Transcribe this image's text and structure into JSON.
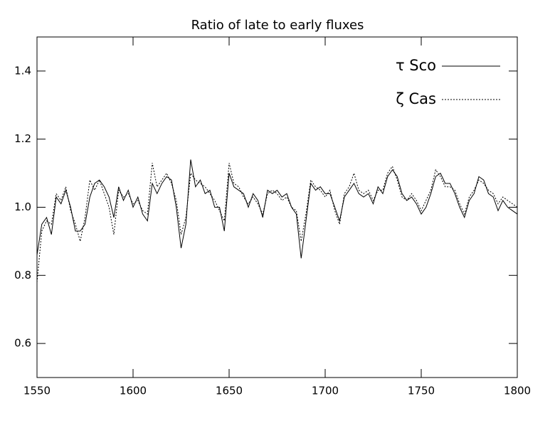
{
  "chart_data": {
    "type": "line",
    "title": "Ratio of late to early fluxes",
    "x": [
      1550,
      1552.5,
      1555,
      1557.5,
      1560,
      1562.5,
      1565,
      1567.5,
      1570,
      1572.5,
      1575,
      1577.5,
      1580,
      1582.5,
      1585,
      1587.5,
      1590,
      1592.5,
      1595,
      1597.5,
      1600,
      1602.5,
      1605,
      1607.5,
      1610,
      1612.5,
      1615,
      1617.5,
      1620,
      1622.5,
      1625,
      1627.5,
      1630,
      1632.5,
      1635,
      1637.5,
      1640,
      1642.5,
      1645,
      1647.5,
      1650,
      1652.5,
      1655,
      1657.5,
      1660,
      1662.5,
      1665,
      1667.5,
      1670,
      1672.5,
      1675,
      1677.5,
      1680,
      1682.5,
      1685,
      1687.5,
      1690,
      1692.5,
      1695,
      1697.5,
      1700,
      1702.5,
      1705,
      1707.5,
      1710,
      1712.5,
      1715,
      1717.5,
      1720,
      1722.5,
      1725,
      1727.5,
      1730,
      1732.5,
      1735,
      1737.5,
      1740,
      1742.5,
      1745,
      1747.5,
      1750,
      1752.5,
      1755,
      1757.5,
      1760,
      1762.5,
      1765,
      1767.5,
      1770,
      1772.5,
      1775,
      1777.5,
      1780,
      1782.5,
      1785,
      1787.5,
      1790,
      1792.5,
      1795,
      1797.5,
      1800
    ],
    "series": [
      {
        "name": "τ Sco",
        "color": "#000000",
        "line_style": "solid",
        "values": [
          0.86,
          0.95,
          0.97,
          0.92,
          1.03,
          1.01,
          1.05,
          1.0,
          0.93,
          0.93,
          0.95,
          1.03,
          1.07,
          1.08,
          1.06,
          1.03,
          0.97,
          1.06,
          1.02,
          1.05,
          1.0,
          1.03,
          0.98,
          0.96,
          1.07,
          1.04,
          1.07,
          1.09,
          1.08,
          1.0,
          0.88,
          0.95,
          1.14,
          1.06,
          1.08,
          1.04,
          1.05,
          1.0,
          1.0,
          0.93,
          1.1,
          1.06,
          1.05,
          1.04,
          1.0,
          1.04,
          1.02,
          0.97,
          1.05,
          1.04,
          1.05,
          1.03,
          1.04,
          1.0,
          0.98,
          0.85,
          0.96,
          1.07,
          1.05,
          1.06,
          1.04,
          1.04,
          1.0,
          0.96,
          1.03,
          1.05,
          1.07,
          1.04,
          1.03,
          1.04,
          1.01,
          1.06,
          1.04,
          1.09,
          1.11,
          1.09,
          1.04,
          1.02,
          1.03,
          1.01,
          0.98,
          1.0,
          1.04,
          1.09,
          1.1,
          1.07,
          1.07,
          1.04,
          1.0,
          0.97,
          1.02,
          1.04,
          1.09,
          1.08,
          1.04,
          1.03,
          0.99,
          1.02,
          1.0,
          0.99,
          0.98
        ]
      },
      {
        "name": "ζ Cas",
        "color": "#000000",
        "line_style": "dotted",
        "values": [
          0.78,
          0.93,
          0.96,
          0.95,
          1.04,
          1.02,
          1.06,
          0.99,
          0.95,
          0.9,
          0.97,
          1.08,
          1.05,
          1.08,
          1.04,
          1.0,
          0.92,
          1.05,
          1.03,
          1.04,
          1.01,
          1.02,
          0.99,
          0.98,
          1.13,
          1.06,
          1.08,
          1.1,
          1.07,
          1.02,
          0.92,
          0.97,
          1.1,
          1.08,
          1.07,
          1.06,
          1.04,
          1.02,
          0.99,
          0.96,
          1.13,
          1.07,
          1.06,
          1.03,
          1.01,
          1.03,
          1.01,
          0.98,
          1.04,
          1.05,
          1.04,
          1.02,
          1.03,
          1.0,
          0.99,
          0.9,
          0.98,
          1.08,
          1.06,
          1.05,
          1.03,
          1.05,
          0.99,
          0.95,
          1.04,
          1.06,
          1.1,
          1.05,
          1.04,
          1.05,
          1.02,
          1.05,
          1.05,
          1.1,
          1.12,
          1.08,
          1.03,
          1.02,
          1.04,
          1.02,
          0.99,
          1.02,
          1.05,
          1.11,
          1.09,
          1.06,
          1.06,
          1.05,
          1.01,
          0.98,
          1.03,
          1.05,
          1.08,
          1.07,
          1.05,
          1.04,
          1.01,
          1.03,
          1.02,
          1.01,
          1.0
        ]
      }
    ],
    "xlim": [
      1550,
      1800
    ],
    "xticks": [
      1550,
      1600,
      1650,
      1700,
      1750,
      1800
    ],
    "ylim": [
      0.5,
      1.5
    ],
    "yticks": [
      0.6,
      0.8,
      {
        "value": 1,
        "label": "1.0"
      },
      1.2,
      1.4
    ],
    "grid": false,
    "legend": "top-right"
  }
}
